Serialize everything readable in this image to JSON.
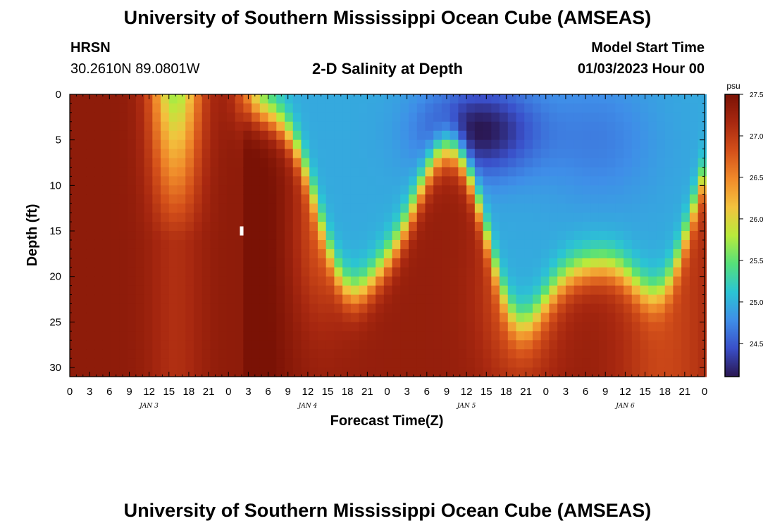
{
  "page": {
    "title": "University of Southern Mississippi Ocean Cube (AMSEAS)",
    "station": "HRSN",
    "coords": "30.2610N  89.0801W",
    "subtitle": "2-D Salinity at Depth",
    "model_start_label": "Model Start Time",
    "model_start_value": "01/03/2023 Hour 00",
    "bottom_title": "University of Southern Mississippi Ocean Cube (AMSEAS)"
  },
  "colors": {
    "scale": [
      "#2a1650",
      "#3a4fc9",
      "#3f8ee8",
      "#2bc4d4",
      "#55e07a",
      "#b8ea3c",
      "#f3c33e",
      "#f08a2a",
      "#d4501a",
      "#a82810",
      "#7a1205"
    ]
  },
  "chart_data": {
    "type": "heatmap",
    "title": "2-D Salinity at Depth",
    "xlabel": "Forecast Time(Z)",
    "ylabel": "Depth (ft)",
    "x_hours_range": [
      0,
      96
    ],
    "y_range_ft": [
      0,
      31
    ],
    "x_tick_labels": [
      "0",
      "3",
      "6",
      "9",
      "12",
      "15",
      "18",
      "21",
      "0",
      "3",
      "6",
      "9",
      "12",
      "15",
      "18",
      "21",
      "0",
      "3",
      "6",
      "9",
      "12",
      "15",
      "18",
      "21",
      "0",
      "3",
      "6",
      "9",
      "12",
      "15",
      "18",
      "21",
      "0"
    ],
    "y_ticks": [
      0,
      5,
      10,
      15,
      20,
      25,
      30
    ],
    "day_labels": [
      {
        "text": "JAN 3",
        "hour": 12
      },
      {
        "text": "JAN 4",
        "hour": 36
      },
      {
        "text": "JAN 5",
        "hour": 60
      },
      {
        "text": "JAN 6",
        "hour": 84
      }
    ],
    "colorbar": {
      "unit": "psu",
      "min": 24.1,
      "max": 27.5,
      "ticks": [
        "27.5",
        "27.0",
        "26.5",
        "26.0",
        "25.5",
        "25.0",
        "24.5"
      ]
    },
    "value_range_psu": [
      24.1,
      27.5
    ],
    "marker": {
      "hour": 26,
      "depth_ft": 15
    }
  }
}
